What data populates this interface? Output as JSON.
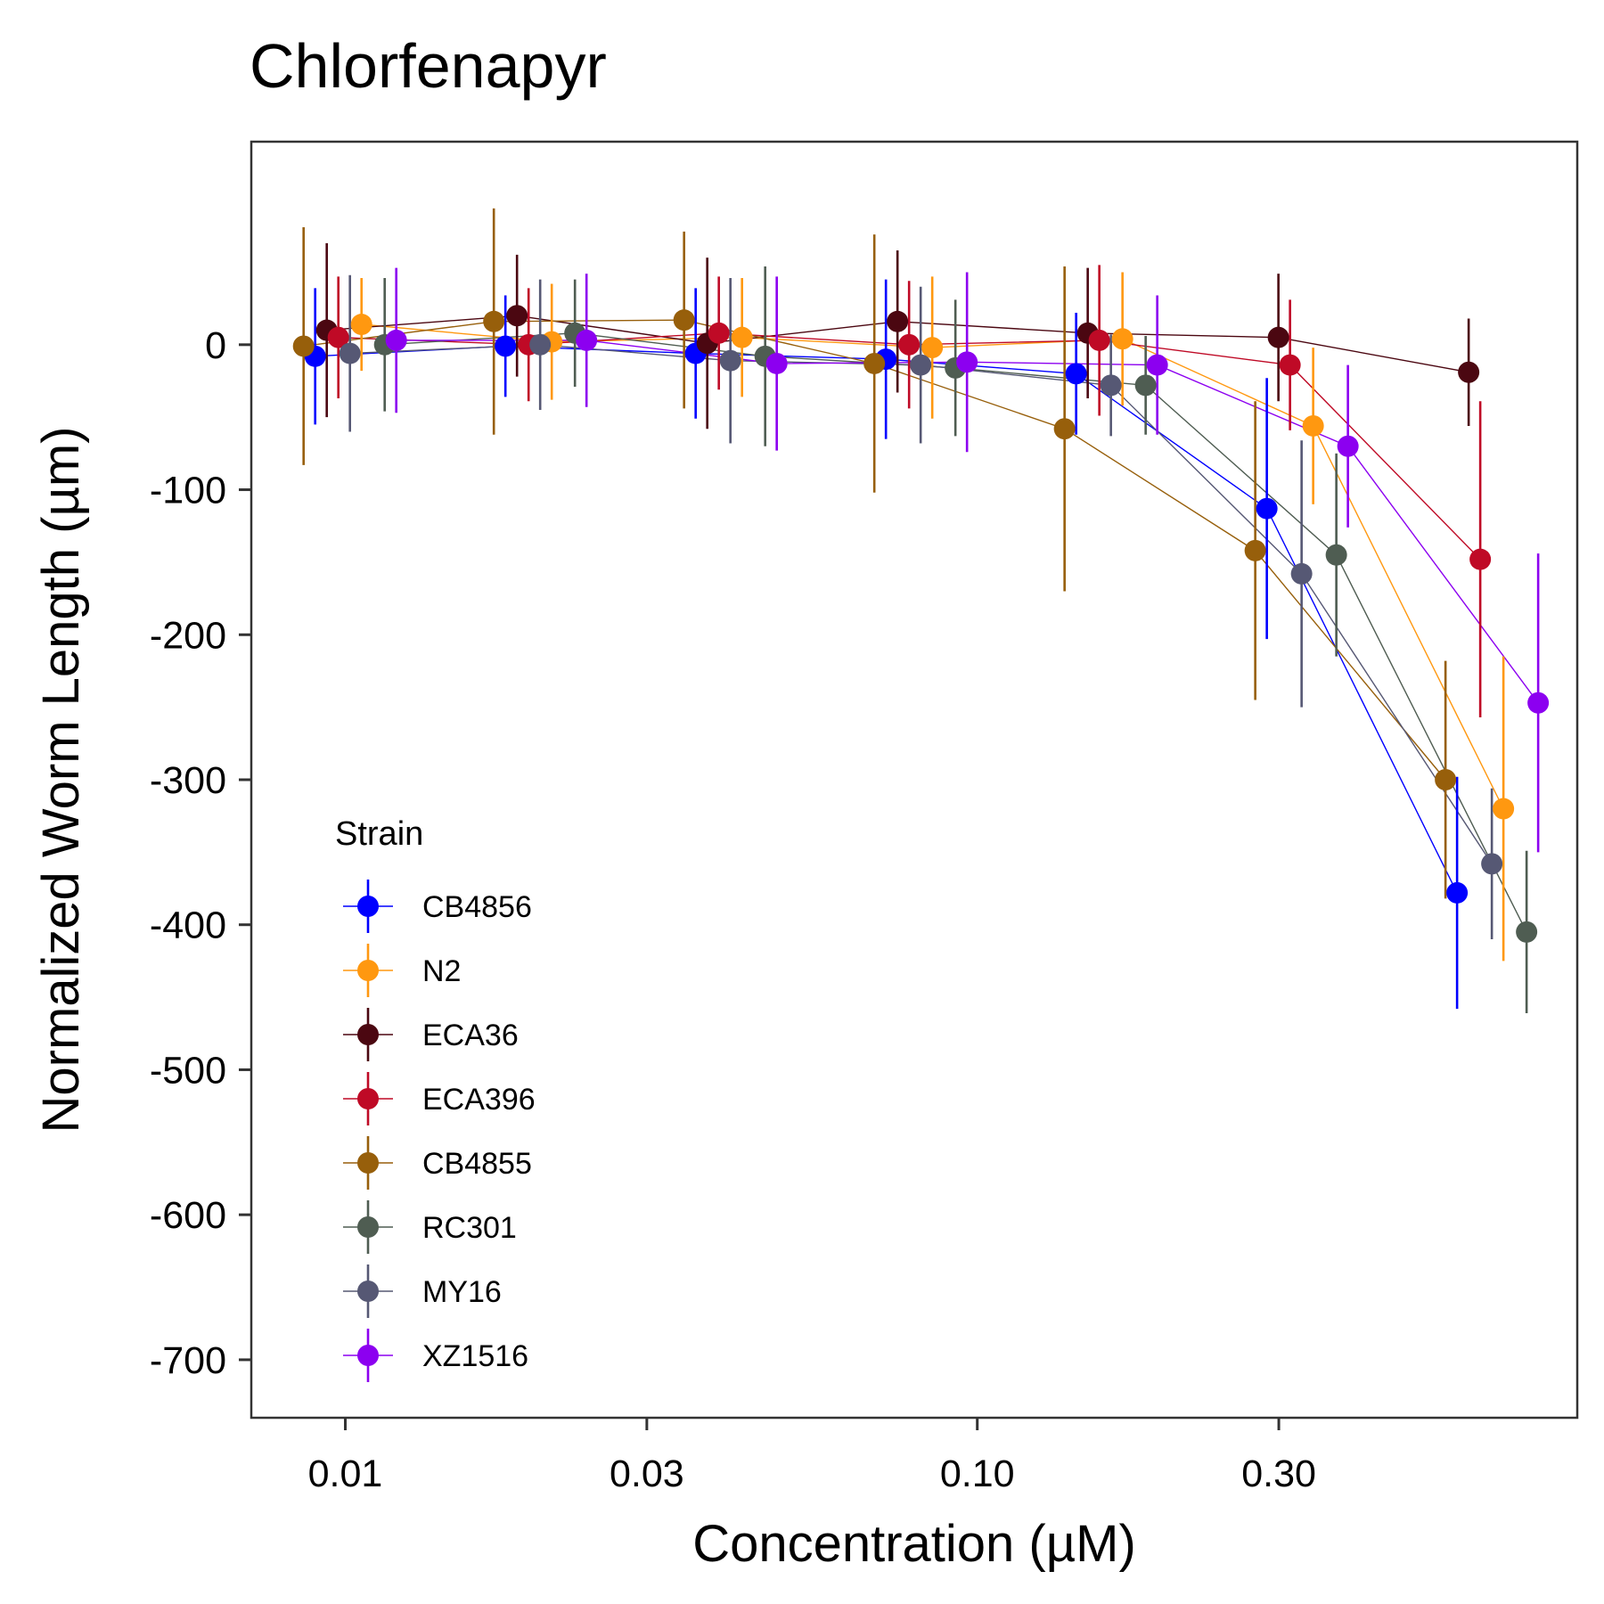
{
  "chart_data": {
    "type": "scatter",
    "title": "Chlorfenapyr",
    "xlabel": "Concentration (µM)",
    "ylabel": "Normalized Worm Length (µm)",
    "x_scale": "log10",
    "x_ticks": [
      0.01,
      0.03,
      0.1,
      0.3
    ],
    "x_tick_labels": [
      "0.01",
      "0.03",
      "0.10",
      "0.30"
    ],
    "y_ticks": [
      0,
      -100,
      -200,
      -300,
      -400,
      -500,
      -600,
      -700
    ],
    "y_tick_labels": [
      "0",
      "-100",
      "-200",
      "-300",
      "-400",
      "-500",
      "-600",
      "-700"
    ],
    "ylim": [
      -740,
      140
    ],
    "grid": false,
    "legend": {
      "title": "Strain",
      "position": "inside-bottom-left"
    },
    "concentrations": [
      0.00975,
      0.0195,
      0.039,
      0.078,
      0.156,
      0.3125,
      0.625
    ],
    "series": [
      {
        "name": "CB4856",
        "color": "#0000FF",
        "offset": -2,
        "values": [
          -8,
          -1,
          -6,
          -10,
          -20,
          -113,
          -378
        ],
        "errors": [
          47,
          35,
          45,
          55,
          42,
          90,
          80
        ]
      },
      {
        "name": "N2",
        "color": "#FF9810",
        "offset": 2,
        "values": [
          14,
          2,
          5,
          -2,
          4,
          -56,
          -320
        ],
        "errors": [
          32,
          40,
          41,
          49,
          46,
          54,
          105
        ]
      },
      {
        "name": "ECA36",
        "color": "#4B0711",
        "offset": -1,
        "values": [
          10,
          20,
          1,
          16,
          8,
          5,
          -19
        ],
        "errors": [
          60,
          42,
          59,
          49,
          45,
          44,
          37
        ]
      },
      {
        "name": "ECA396",
        "color": "#BF0A26",
        "offset": 0,
        "values": [
          5,
          0,
          8,
          0,
          3,
          -14,
          -148
        ],
        "errors": [
          42,
          39,
          39,
          44,
          52,
          45,
          109
        ]
      },
      {
        "name": "CB4855",
        "color": "#975F0B",
        "offset": -3,
        "values": [
          -1,
          16,
          17,
          -13,
          -58,
          -142,
          -300
        ],
        "errors": [
          82,
          78,
          61,
          89,
          112,
          103,
          82
        ]
      },
      {
        "name": "RC301",
        "color": "#4F5D52",
        "offset": 4,
        "values": [
          0,
          8,
          -8,
          -16,
          -28,
          -145,
          -405
        ],
        "errors": [
          46,
          37,
          62,
          47,
          34,
          70,
          56
        ]
      },
      {
        "name": "MY16",
        "color": "#565874",
        "offset": 1,
        "values": [
          -6,
          0,
          -11,
          -14,
          -28,
          -158,
          -358
        ],
        "errors": [
          54,
          45,
          57,
          54,
          35,
          92,
          52
        ]
      },
      {
        "name": "XZ1516",
        "color": "#8C00F0",
        "offset": 5,
        "values": [
          3,
          3,
          -13,
          -12,
          -14,
          -70,
          -247
        ],
        "errors": [
          50,
          46,
          60,
          62,
          48,
          56,
          103
        ]
      }
    ]
  }
}
